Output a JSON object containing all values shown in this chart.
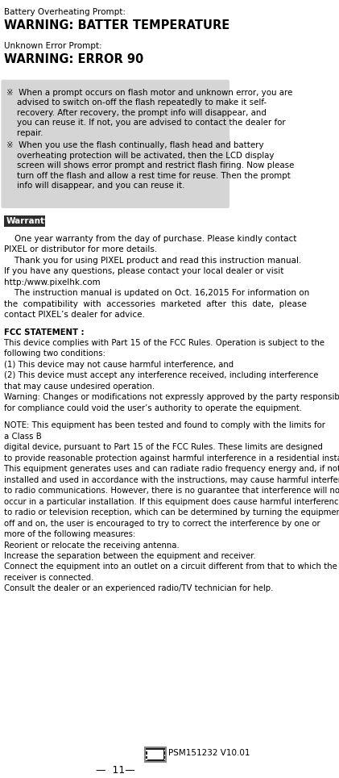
{
  "bg_color": "#ffffff",
  "text_color": "#000000",
  "gray_box_color": "#d5d5d5",
  "warranty_header_bg": "#2d2d2d",
  "warranty_header_text": "Warranty",
  "warranty_header_text_color": "#ffffff",
  "top_lines": [
    {
      "text": "Battery Overheating Prompt:",
      "bold": false,
      "size": 7.5
    },
    {
      "text": "WARNING: BATTER TEMPERATURE",
      "bold": true,
      "size": 10.5
    },
    {
      "text": "",
      "bold": false,
      "size": 7.5
    },
    {
      "text": "Unknown Error Prompt:",
      "bold": false,
      "size": 7.5
    },
    {
      "text": "WARNING: ERROR 90",
      "bold": true,
      "size": 10.5
    }
  ],
  "gray_lines_1": [
    "※  When a prompt occurs on flash motor and unknown error, you are",
    "    advised to switch on-off the flash repeatedly to make it self-",
    "    recovery. After recovery, the prompt info will disappear, and",
    "    you can reuse it. If not, you are advised to contact the dealer for",
    "    repair."
  ],
  "gray_lines_2": [
    "※  When you use the flash continually, flash head and battery",
    "    overheating protection will be activated, then the LCD display",
    "    screen will shows error prompt and restrict flash firing. Now please",
    "    turn off the flash and allow a rest time for reuse. Then the prompt",
    "    info will disappear, and you can reuse it."
  ],
  "warranty_lines": [
    {
      "text": "    One year warranty from the day of purchase. Please kindly contact",
      "indent": false
    },
    {
      "text": "PIXEL or distributor for more details.",
      "indent": false
    },
    {
      "text": "    Thank you for using PIXEL product and read this instruction manual.",
      "indent": false
    },
    {
      "text": "If you have any questions, please contact your local dealer or visit",
      "indent": false
    },
    {
      "text": "http:/www.pixelhk.com",
      "indent": false
    },
    {
      "text": "    The instruction manual is updated on Oct. 16,2015 For information on",
      "indent": false
    },
    {
      "text": "the  compatibility  with  accessories  marketed  after  this  date,  please",
      "indent": false
    },
    {
      "text": "contact PIXEL’s dealer for advice.",
      "indent": false
    }
  ],
  "fcc_lines": [
    {
      "text": "FCC STATEMENT :",
      "bold": true,
      "gap_before": false
    },
    {
      "text": "This device complies with Part 15 of the FCC Rules. Operation is subject to the",
      "bold": false,
      "gap_before": false
    },
    {
      "text": "following two conditions:",
      "bold": false,
      "gap_before": false
    },
    {
      "text": "(1) This device may not cause harmful interference, and",
      "bold": false,
      "gap_before": false
    },
    {
      "text": "(2) This device must accept any interference received, including interference",
      "bold": false,
      "gap_before": false
    },
    {
      "text": "that may cause undesired operation.",
      "bold": false,
      "gap_before": false
    },
    {
      "text": "Warning: Changes or modifications not expressly approved by the party responsible",
      "bold": false,
      "gap_before": false
    },
    {
      "text": "for compliance could void the user’s authority to operate the equipment.",
      "bold": false,
      "gap_before": false
    },
    {
      "text": "",
      "bold": false,
      "gap_before": false
    },
    {
      "text": "NOTE: This equipment has been tested and found to comply with the limits for",
      "bold": false,
      "gap_before": false
    },
    {
      "text": "a Class B",
      "bold": false,
      "gap_before": false
    },
    {
      "text": "digital device, pursuant to Part 15 of the FCC Rules. These limits are designed",
      "bold": false,
      "gap_before": false
    },
    {
      "text": "to provide reasonable protection against harmful interference in a residential installation.",
      "bold": false,
      "gap_before": false
    },
    {
      "text": "This equipment generates uses and can radiate radio frequency energy and, if not",
      "bold": false,
      "gap_before": false
    },
    {
      "text": "installed and used in accordance with the instructions, may cause harmful interference",
      "bold": false,
      "gap_before": false
    },
    {
      "text": "to radio communications. However, there is no guarantee that interference will not",
      "bold": false,
      "gap_before": false
    },
    {
      "text": "occur in a particular installation. If this equipment does cause harmful interference",
      "bold": false,
      "gap_before": false
    },
    {
      "text": "to radio or television reception, which can be determined by turning the equipment",
      "bold": false,
      "gap_before": false
    },
    {
      "text": "off and on, the user is encouraged to try to correct the interference by one or",
      "bold": false,
      "gap_before": false
    },
    {
      "text": "more of the following measures:",
      "bold": false,
      "gap_before": false
    },
    {
      "text": "Reorient or relocate the receiving antenna.",
      "bold": false,
      "gap_before": false
    },
    {
      "text": "Increase the separation between the equipment and receiver.",
      "bold": false,
      "gap_before": false
    },
    {
      "text": "Connect the equipment into an outlet on a circuit different from that to which the",
      "bold": false,
      "gap_before": false
    },
    {
      "text": "receiver is connected.",
      "bold": false,
      "gap_before": false
    },
    {
      "text": "Consult the dealer or an experienced radio/TV technician for help.",
      "bold": false,
      "gap_before": false
    }
  ],
  "footer_text": "PSM151232 V10.01",
  "page_number": "—  11—"
}
